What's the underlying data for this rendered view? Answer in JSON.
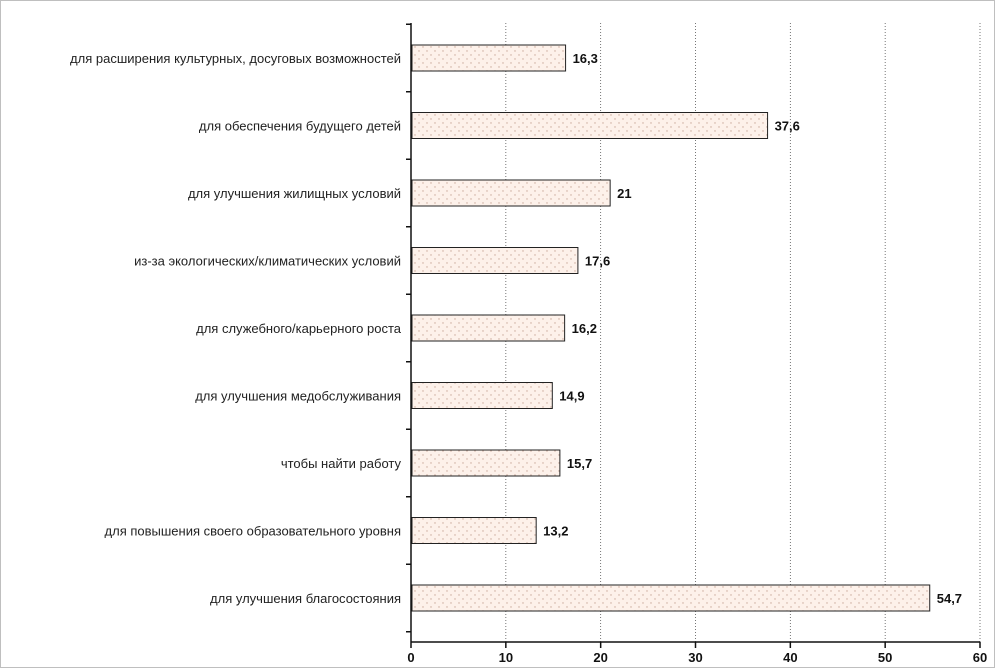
{
  "chart_data": {
    "type": "bar",
    "orientation": "horizontal",
    "title": "",
    "xlabel": "",
    "ylabel": "",
    "categories": [
      "для расширения культурных, досуговых возможностей",
      "для обеспечения будущего детей",
      "для улучшения жилищных условий",
      "из-за экологических/климатических условий",
      "для служебного/карьерного роста",
      "для улучшения медобслуживания",
      "чтобы найти работу",
      "для повышения своего образовательного уровня",
      "для улучшения благосостояния"
    ],
    "values": [
      16.3,
      37.6,
      21,
      17.6,
      16.2,
      14.9,
      15.7,
      13.2,
      54.7
    ],
    "value_labels": [
      "16,3",
      "37,6",
      "21",
      "17,6",
      "16,2",
      "14,9",
      "15,7",
      "13,2",
      "54,7"
    ],
    "xlim": [
      0,
      60
    ],
    "xticks": [
      0,
      10,
      20,
      30,
      40,
      50,
      60
    ],
    "grid": "vertical dotted",
    "legend": "none",
    "colors": {
      "bar_fill": "#fdf1ea",
      "bar_dots": "#c9a89a",
      "bar_stroke": "#222222",
      "grid": "#555555"
    }
  }
}
